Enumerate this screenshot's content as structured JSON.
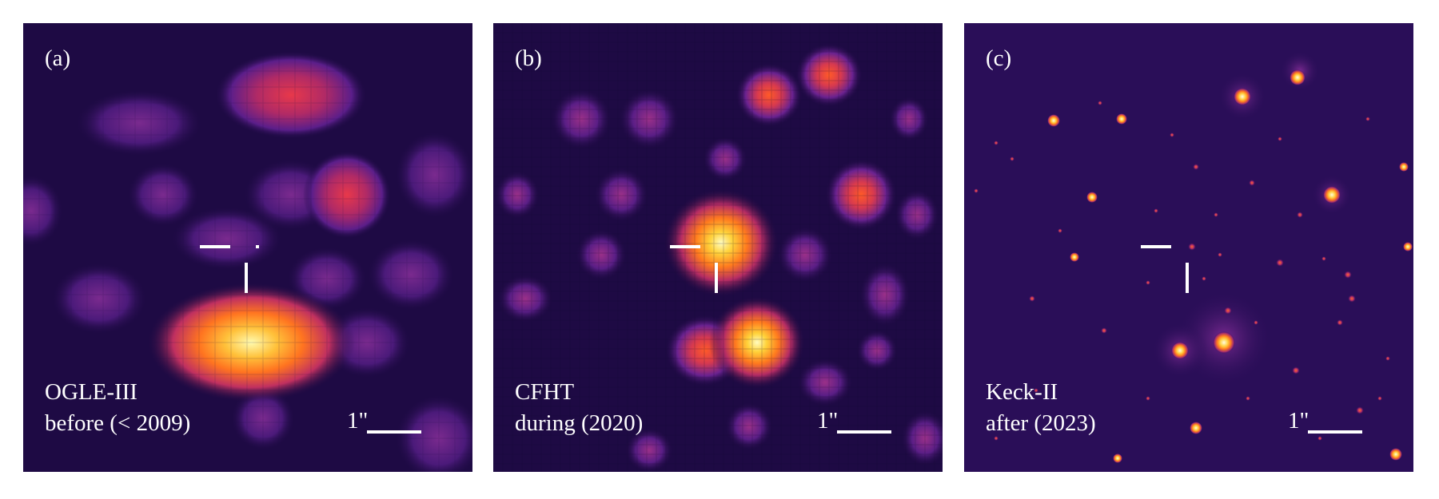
{
  "panels": [
    {
      "label": "(a)",
      "caption_line1": "OGLE-III",
      "caption_line2": "before (< 2009)",
      "scale_label": "1\""
    },
    {
      "label": "(b)",
      "caption_line1": "CFHT",
      "caption_line2": "during (2020)",
      "scale_label": "1\""
    },
    {
      "label": "(c)",
      "caption_line1": "Keck-II",
      "caption_line2": "after (2023)",
      "scale_label": "1\""
    }
  ],
  "colors": {
    "background": "#1e0a44",
    "star_core": "#fffbb0",
    "star_mid": "#ff8a20",
    "star_outer": "#c8305c",
    "star_halo": "#5b1e8a",
    "marker": "#ffffff"
  }
}
